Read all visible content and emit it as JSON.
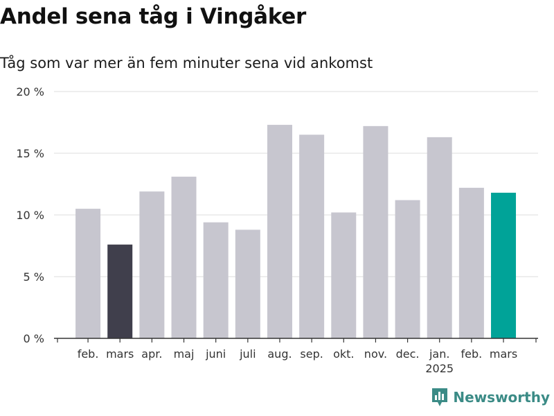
{
  "title": "Andel sena tåg i Vingåker",
  "subtitle": "Tåg som var mer än fem minuter sena vid ankomst",
  "brand": {
    "name": "Newsworthy",
    "logo_icon": "bar-chart-badge-icon",
    "color": "#3b8b86"
  },
  "chart_data": {
    "type": "bar",
    "categories": [
      "feb.",
      "mars",
      "apr.",
      "maj",
      "juni",
      "juli",
      "aug.",
      "sep.",
      "okt.",
      "nov.",
      "dec.",
      "jan.",
      "feb.",
      "mars"
    ],
    "category_sublabels": [
      "",
      "",
      "",
      "",
      "",
      "",
      "",
      "",
      "",
      "",
      "",
      "2025",
      "",
      ""
    ],
    "values": [
      10.5,
      7.6,
      11.9,
      13.1,
      9.4,
      8.8,
      17.3,
      16.5,
      10.2,
      17.2,
      11.2,
      16.3,
      12.2,
      11.8
    ],
    "unit": "%",
    "ylim": [
      0,
      20
    ],
    "yticks": [
      0,
      5,
      10,
      15,
      20
    ],
    "ytick_labels": [
      "0 %",
      "5 %",
      "10 %",
      "15 %",
      "20 %"
    ],
    "grid": true,
    "legend": "none",
    "colors": {
      "default": "#c7c6cf",
      "last_year_same_month": "#403f4c",
      "latest": "#00a398",
      "grid": "#dedede",
      "axis": "#333333"
    },
    "highlight": {
      "1": "last_year_same_month",
      "13": "latest"
    }
  }
}
